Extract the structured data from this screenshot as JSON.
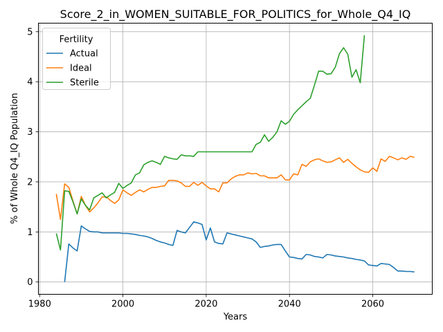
{
  "chart_data": {
    "type": "line",
    "title": "Score_2_in_WOMEN_SUITABLE_FOR_POLITICS_for_Whole_Q4_IQ",
    "xlabel": "Years",
    "ylabel": "% of Whole Q4_IQ Population",
    "xlim": [
      1979.7,
      2074.3
    ],
    "ylim": [
      -0.246,
      5.17
    ],
    "xticks": [
      1980,
      2000,
      2020,
      2040,
      2060
    ],
    "yticks": [
      0,
      1,
      2,
      3,
      4,
      5
    ],
    "grid": true,
    "legend": {
      "title": "Fertility",
      "placement": "top-left"
    },
    "series": [
      {
        "name": "Actual",
        "color": "#1f77b4",
        "points": [
          [
            1986,
            0.0
          ],
          [
            1987,
            0.76
          ],
          [
            1988,
            0.68
          ],
          [
            1989,
            0.62
          ],
          [
            1990,
            1.12
          ],
          [
            1991,
            1.06
          ],
          [
            1992,
            1.01
          ],
          [
            1993,
            1.0
          ],
          [
            1994,
            1.0
          ],
          [
            1995,
            0.98
          ],
          [
            1996,
            0.98
          ],
          [
            1997,
            0.98
          ],
          [
            1998,
            0.98
          ],
          [
            1999,
            0.98
          ],
          [
            2000,
            0.97
          ],
          [
            2001,
            0.97
          ],
          [
            2002,
            0.96
          ],
          [
            2003,
            0.95
          ],
          [
            2004,
            0.93
          ],
          [
            2005,
            0.92
          ],
          [
            2006,
            0.9
          ],
          [
            2007,
            0.87
          ],
          [
            2008,
            0.83
          ],
          [
            2009,
            0.8
          ],
          [
            2010,
            0.78
          ],
          [
            2011,
            0.75
          ],
          [
            2012,
            0.73
          ],
          [
            2013,
            1.03
          ],
          [
            2014,
            1.0
          ],
          [
            2015,
            0.98
          ],
          [
            2016,
            1.09
          ],
          [
            2017,
            1.2
          ],
          [
            2018,
            1.18
          ],
          [
            2019,
            1.15
          ],
          [
            2020,
            0.84
          ],
          [
            2021,
            1.08
          ],
          [
            2022,
            0.8
          ],
          [
            2023,
            0.77
          ],
          [
            2024,
            0.76
          ],
          [
            2025,
            0.98
          ],
          [
            2026,
            0.96
          ],
          [
            2027,
            0.94
          ],
          [
            2028,
            0.92
          ],
          [
            2029,
            0.9
          ],
          [
            2030,
            0.88
          ],
          [
            2031,
            0.86
          ],
          [
            2032,
            0.8
          ],
          [
            2033,
            0.69
          ],
          [
            2034,
            0.71
          ],
          [
            2035,
            0.72
          ],
          [
            2036,
            0.74
          ],
          [
            2037,
            0.75
          ],
          [
            2038,
            0.75
          ],
          [
            2039,
            0.62
          ],
          [
            2040,
            0.5
          ],
          [
            2041,
            0.49
          ],
          [
            2042,
            0.47
          ],
          [
            2043,
            0.46
          ],
          [
            2044,
            0.55
          ],
          [
            2045,
            0.54
          ],
          [
            2046,
            0.51
          ],
          [
            2047,
            0.5
          ],
          [
            2048,
            0.48
          ],
          [
            2049,
            0.55
          ],
          [
            2050,
            0.54
          ],
          [
            2051,
            0.52
          ],
          [
            2052,
            0.51
          ],
          [
            2053,
            0.5
          ],
          [
            2054,
            0.48
          ],
          [
            2055,
            0.47
          ],
          [
            2056,
            0.45
          ],
          [
            2057,
            0.44
          ],
          [
            2058,
            0.42
          ],
          [
            2059,
            0.34
          ],
          [
            2060,
            0.33
          ],
          [
            2061,
            0.32
          ],
          [
            2062,
            0.37
          ],
          [
            2063,
            0.36
          ],
          [
            2064,
            0.35
          ],
          [
            2065,
            0.29
          ],
          [
            2066,
            0.22
          ],
          [
            2067,
            0.22
          ],
          [
            2068,
            0.21
          ],
          [
            2069,
            0.21
          ],
          [
            2070,
            0.2
          ]
        ]
      },
      {
        "name": "Ideal",
        "color": "#ff7f0e",
        "points": [
          [
            1984,
            1.76
          ],
          [
            1985,
            1.25
          ],
          [
            1986,
            1.96
          ],
          [
            1987,
            1.89
          ],
          [
            1988,
            1.62
          ],
          [
            1989,
            1.36
          ],
          [
            1990,
            1.71
          ],
          [
            1991,
            1.53
          ],
          [
            1992,
            1.4
          ],
          [
            1993,
            1.48
          ],
          [
            1994,
            1.58
          ],
          [
            1995,
            1.7
          ],
          [
            1996,
            1.7
          ],
          [
            1997,
            1.63
          ],
          [
            1998,
            1.57
          ],
          [
            1999,
            1.64
          ],
          [
            2000,
            1.84
          ],
          [
            2001,
            1.78
          ],
          [
            2002,
            1.73
          ],
          [
            2003,
            1.79
          ],
          [
            2004,
            1.84
          ],
          [
            2005,
            1.8
          ],
          [
            2006,
            1.85
          ],
          [
            2007,
            1.89
          ],
          [
            2008,
            1.89
          ],
          [
            2009,
            1.91
          ],
          [
            2010,
            1.92
          ],
          [
            2011,
            2.03
          ],
          [
            2012,
            2.03
          ],
          [
            2013,
            2.02
          ],
          [
            2014,
            1.98
          ],
          [
            2015,
            1.91
          ],
          [
            2016,
            1.91
          ],
          [
            2017,
            1.99
          ],
          [
            2018,
            1.93
          ],
          [
            2019,
            1.99
          ],
          [
            2020,
            1.92
          ],
          [
            2021,
            1.86
          ],
          [
            2022,
            1.86
          ],
          [
            2023,
            1.8
          ],
          [
            2024,
            1.98
          ],
          [
            2025,
            1.98
          ],
          [
            2026,
            2.06
          ],
          [
            2027,
            2.11
          ],
          [
            2028,
            2.14
          ],
          [
            2029,
            2.14
          ],
          [
            2030,
            2.18
          ],
          [
            2031,
            2.16
          ],
          [
            2032,
            2.17
          ],
          [
            2033,
            2.12
          ],
          [
            2034,
            2.12
          ],
          [
            2035,
            2.08
          ],
          [
            2036,
            2.08
          ],
          [
            2037,
            2.08
          ],
          [
            2038,
            2.14
          ],
          [
            2039,
            2.04
          ],
          [
            2040,
            2.04
          ],
          [
            2041,
            2.16
          ],
          [
            2042,
            2.14
          ],
          [
            2043,
            2.35
          ],
          [
            2044,
            2.31
          ],
          [
            2045,
            2.4
          ],
          [
            2046,
            2.44
          ],
          [
            2047,
            2.46
          ],
          [
            2048,
            2.42
          ],
          [
            2049,
            2.39
          ],
          [
            2050,
            2.4
          ],
          [
            2051,
            2.44
          ],
          [
            2052,
            2.48
          ],
          [
            2053,
            2.39
          ],
          [
            2054,
            2.45
          ],
          [
            2055,
            2.37
          ],
          [
            2056,
            2.3
          ],
          [
            2057,
            2.24
          ],
          [
            2058,
            2.2
          ],
          [
            2059,
            2.19
          ],
          [
            2060,
            2.28
          ],
          [
            2061,
            2.21
          ],
          [
            2062,
            2.46
          ],
          [
            2063,
            2.41
          ],
          [
            2064,
            2.51
          ],
          [
            2065,
            2.48
          ],
          [
            2066,
            2.44
          ],
          [
            2067,
            2.48
          ],
          [
            2068,
            2.45
          ],
          [
            2069,
            2.51
          ],
          [
            2070,
            2.49
          ]
        ]
      },
      {
        "name": "Sterile",
        "color": "#2ca02c",
        "points": [
          [
            1984,
            0.97
          ],
          [
            1985,
            0.64
          ],
          [
            1986,
            1.82
          ],
          [
            1987,
            1.81
          ],
          [
            1988,
            1.6
          ],
          [
            1989,
            1.36
          ],
          [
            1990,
            1.66
          ],
          [
            1991,
            1.53
          ],
          [
            1992,
            1.44
          ],
          [
            1993,
            1.68
          ],
          [
            1994,
            1.73
          ],
          [
            1995,
            1.78
          ],
          [
            1996,
            1.68
          ],
          [
            1997,
            1.74
          ],
          [
            1998,
            1.79
          ],
          [
            1999,
            1.97
          ],
          [
            2000,
            1.87
          ],
          [
            2001,
            1.93
          ],
          [
            2002,
            1.98
          ],
          [
            2003,
            2.14
          ],
          [
            2004,
            2.18
          ],
          [
            2005,
            2.34
          ],
          [
            2006,
            2.39
          ],
          [
            2007,
            2.42
          ],
          [
            2008,
            2.39
          ],
          [
            2009,
            2.35
          ],
          [
            2010,
            2.51
          ],
          [
            2011,
            2.48
          ],
          [
            2012,
            2.46
          ],
          [
            2013,
            2.45
          ],
          [
            2014,
            2.54
          ],
          [
            2015,
            2.52
          ],
          [
            2016,
            2.52
          ],
          [
            2017,
            2.51
          ],
          [
            2018,
            2.6
          ],
          [
            2019,
            2.6
          ],
          [
            2020,
            2.6
          ],
          [
            2021,
            2.6
          ],
          [
            2022,
            2.6
          ],
          [
            2023,
            2.6
          ],
          [
            2024,
            2.6
          ],
          [
            2025,
            2.6
          ],
          [
            2026,
            2.6
          ],
          [
            2027,
            2.6
          ],
          [
            2028,
            2.6
          ],
          [
            2029,
            2.6
          ],
          [
            2030,
            2.6
          ],
          [
            2031,
            2.6
          ],
          [
            2032,
            2.75
          ],
          [
            2033,
            2.79
          ],
          [
            2034,
            2.94
          ],
          [
            2035,
            2.81
          ],
          [
            2036,
            2.89
          ],
          [
            2037,
            3.0
          ],
          [
            2038,
            3.22
          ],
          [
            2039,
            3.15
          ],
          [
            2040,
            3.21
          ],
          [
            2041,
            3.35
          ],
          [
            2042,
            3.44
          ],
          [
            2043,
            3.52
          ],
          [
            2044,
            3.6
          ],
          [
            2045,
            3.67
          ],
          [
            2046,
            3.93
          ],
          [
            2047,
            4.21
          ],
          [
            2048,
            4.21
          ],
          [
            2049,
            4.15
          ],
          [
            2050,
            4.16
          ],
          [
            2051,
            4.29
          ],
          [
            2052,
            4.56
          ],
          [
            2053,
            4.68
          ],
          [
            2054,
            4.55
          ],
          [
            2055,
            4.09
          ],
          [
            2056,
            4.24
          ],
          [
            2057,
            3.98
          ],
          [
            2058,
            4.93
          ]
        ]
      }
    ]
  }
}
